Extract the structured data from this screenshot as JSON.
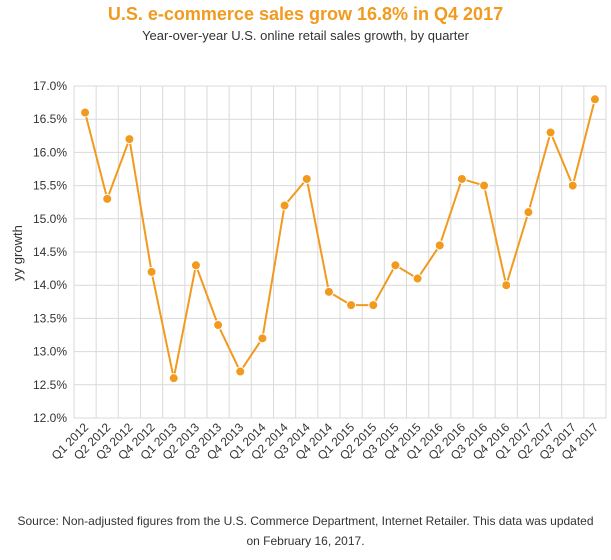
{
  "chart_data": {
    "type": "line",
    "title": "U.S. e-commerce sales grow 16.8% in Q4 2017",
    "subtitle": "Year-over-year U.S. online retail sales growth, by quarter",
    "xlabel": "",
    "ylabel": "yy growth",
    "categories": [
      "Q1 2012",
      "Q2 2012",
      "Q3 2012",
      "Q4 2012",
      "Q1 2013",
      "Q2 2013",
      "Q3 2013",
      "Q4 2013",
      "Q1 2014",
      "Q2 2014",
      "Q3 2014",
      "Q4 2014",
      "Q1 2015",
      "Q2 2015",
      "Q3 2015",
      "Q4 2015",
      "Q1 2016",
      "Q2 2016",
      "Q3 2016",
      "Q4 2016",
      "Q1 2017",
      "Q2 2017",
      "Q3 2017",
      "Q4 2017"
    ],
    "values": [
      16.6,
      15.3,
      16.2,
      14.2,
      12.6,
      14.3,
      13.4,
      12.7,
      13.2,
      15.2,
      15.6,
      13.9,
      13.7,
      13.7,
      14.3,
      14.1,
      14.6,
      15.6,
      15.5,
      14.0,
      15.1,
      16.3,
      15.5,
      16.8
    ],
    "ylim": [
      12.0,
      17.0
    ],
    "yticks": [
      "12.0%",
      "12.5%",
      "13.0%",
      "13.5%",
      "14.0%",
      "14.5%",
      "15.0%",
      "15.5%",
      "16.0%",
      "16.5%",
      "17.0%"
    ],
    "grid": true,
    "line_color": "#F29A1E",
    "grid_color": "#D9D9D9",
    "source": "Source: Non-adjusted figures from the U.S. Commerce Department, Internet Retailer. This data was updated on February 16, 2017."
  }
}
